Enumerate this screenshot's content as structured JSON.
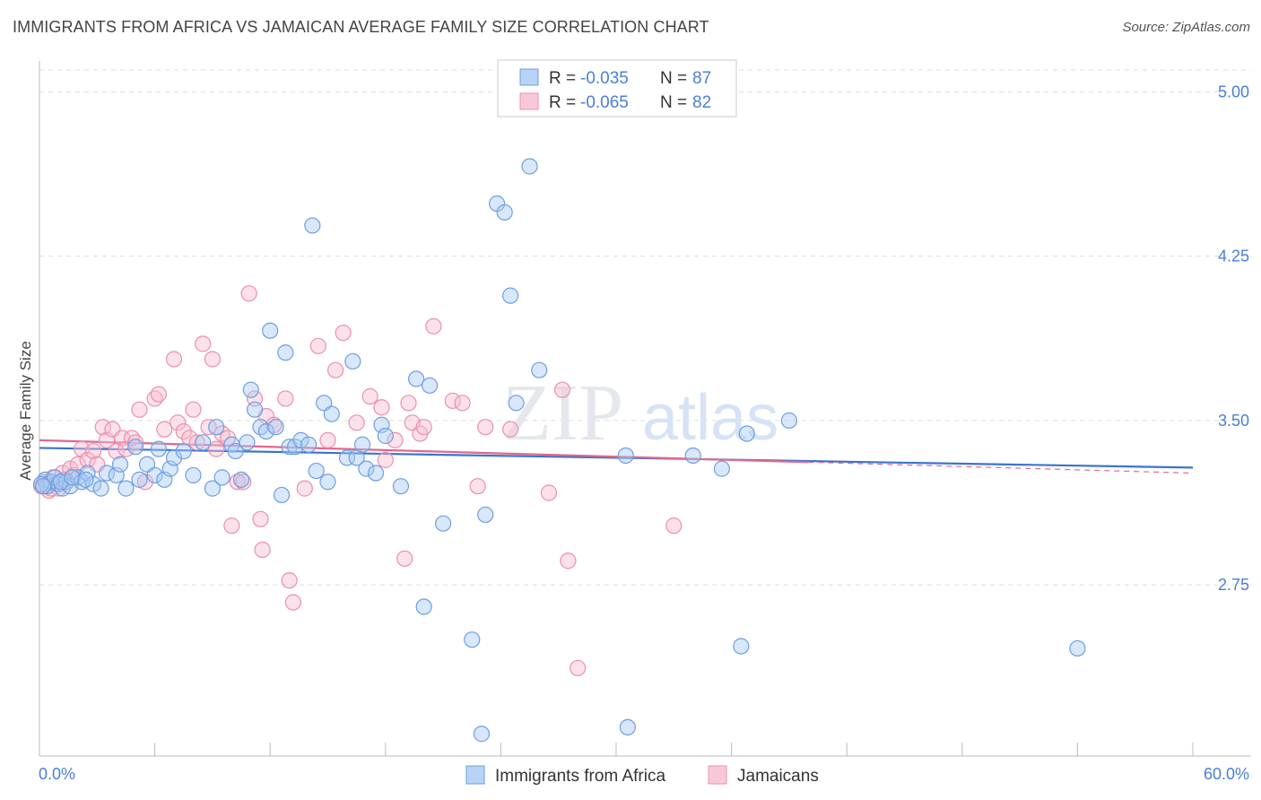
{
  "title": "IMMIGRANTS FROM AFRICA VS JAMAICAN AVERAGE FAMILY SIZE CORRELATION CHART",
  "source": "Source: ZipAtlas.com",
  "watermark": {
    "zip": "ZIP",
    "atlas": "atlas"
  },
  "colors": {
    "blue_fill": "#a9c9f3",
    "blue_stroke": "#6d9fdf",
    "blue_line": "#3a74d0",
    "pink_fill": "#f7bfd0",
    "pink_stroke": "#ec8fac",
    "pink_line": "#e0688f",
    "axis_text": "#4a7fd4",
    "grid": "#dddddd"
  },
  "legend": {
    "rows": [
      {
        "r_label": "R =",
        "r_value": "-0.035",
        "n_label": "N =",
        "n_value": "87"
      },
      {
        "r_label": "R =",
        "r_value": "-0.065",
        "n_label": "N =",
        "n_value": "82"
      }
    ]
  },
  "chart_data": {
    "type": "scatter",
    "xlabel": "",
    "ylabel": "Average Family Size",
    "xlim": [
      0,
      60
    ],
    "ylim": [
      2.03,
      5.1
    ],
    "x_tick_labels": [
      "0.0%",
      "60.0%"
    ],
    "y_ticks": [
      2.75,
      3.5,
      4.25,
      5.0
    ],
    "y_tick_labels": [
      "2.75",
      "3.50",
      "4.25",
      "5.00"
    ],
    "series": [
      {
        "name": "Immigrants from Africa",
        "color": "blue",
        "trend": {
          "x": [
            0,
            60
          ],
          "y": [
            3.375,
            3.285
          ]
        },
        "points": [
          [
            0.3,
            3.23
          ],
          [
            0.4,
            3.2
          ],
          [
            0.6,
            3.22
          ],
          [
            0.8,
            3.24
          ],
          [
            1,
            3.21
          ],
          [
            1.2,
            3.19
          ],
          [
            1.4,
            3.22
          ],
          [
            1.6,
            3.2
          ],
          [
            2,
            3.24
          ],
          [
            2.2,
            3.22
          ],
          [
            2.5,
            3.26
          ],
          [
            2.8,
            3.21
          ],
          [
            3.2,
            3.19
          ],
          [
            3.5,
            3.26
          ],
          [
            4,
            3.25
          ],
          [
            4.2,
            3.3
          ],
          [
            4.5,
            3.19
          ],
          [
            5,
            3.38
          ],
          [
            5.2,
            3.23
          ],
          [
            5.6,
            3.3
          ],
          [
            6,
            3.25
          ],
          [
            6.2,
            3.37
          ],
          [
            6.5,
            3.23
          ],
          [
            6.8,
            3.28
          ],
          [
            7,
            3.33
          ],
          [
            7.5,
            3.36
          ],
          [
            8,
            3.25
          ],
          [
            8.5,
            3.4
          ],
          [
            9,
            3.19
          ],
          [
            9.2,
            3.47
          ],
          [
            9.5,
            3.24
          ],
          [
            10,
            3.39
          ],
          [
            10.2,
            3.36
          ],
          [
            10.5,
            3.23
          ],
          [
            10.8,
            3.4
          ],
          [
            11,
            3.64
          ],
          [
            11.2,
            3.55
          ],
          [
            11.5,
            3.47
          ],
          [
            11.8,
            3.45
          ],
          [
            12,
            3.91
          ],
          [
            12.3,
            3.47
          ],
          [
            12.6,
            3.16
          ],
          [
            12.8,
            3.81
          ],
          [
            13,
            3.38
          ],
          [
            13.3,
            3.38
          ],
          [
            13.6,
            3.41
          ],
          [
            14,
            3.39
          ],
          [
            14.2,
            4.39
          ],
          [
            14.4,
            3.27
          ],
          [
            14.8,
            3.58
          ],
          [
            15,
            3.22
          ],
          [
            15.2,
            3.53
          ],
          [
            16,
            3.33
          ],
          [
            16.3,
            3.77
          ],
          [
            16.5,
            3.33
          ],
          [
            16.8,
            3.39
          ],
          [
            17,
            3.28
          ],
          [
            17.5,
            3.26
          ],
          [
            17.8,
            3.48
          ],
          [
            18,
            3.43
          ],
          [
            18.8,
            3.2
          ],
          [
            19.6,
            3.69
          ],
          [
            20,
            2.65
          ],
          [
            20.3,
            3.66
          ],
          [
            21,
            3.03
          ],
          [
            22.5,
            2.5
          ],
          [
            23,
            2.07
          ],
          [
            23.2,
            3.07
          ],
          [
            23.8,
            4.49
          ],
          [
            24.2,
            4.45
          ],
          [
            24.5,
            4.07
          ],
          [
            24.8,
            3.58
          ],
          [
            25.5,
            4.66
          ],
          [
            26,
            3.73
          ],
          [
            30.5,
            3.34
          ],
          [
            30.6,
            2.1
          ],
          [
            34,
            3.34
          ],
          [
            35.5,
            3.28
          ],
          [
            36.5,
            2.47
          ],
          [
            36.8,
            3.44
          ],
          [
            39,
            3.5
          ],
          [
            54,
            2.46
          ],
          [
            0.1,
            3.21
          ],
          [
            0.2,
            3.2
          ],
          [
            1.1,
            3.22
          ],
          [
            1.7,
            3.24
          ],
          [
            2.4,
            3.23
          ]
        ]
      },
      {
        "name": "Jamaicans",
        "color": "pink",
        "trend": {
          "x": [
            0,
            40
          ],
          "y": [
            3.41,
            3.31
          ]
        },
        "points": [
          [
            0.2,
            3.2
          ],
          [
            0.3,
            3.22
          ],
          [
            0.5,
            3.18
          ],
          [
            0.7,
            3.24
          ],
          [
            0.9,
            3.21
          ],
          [
            1,
            3.19
          ],
          [
            1.2,
            3.26
          ],
          [
            1.4,
            3.22
          ],
          [
            1.6,
            3.28
          ],
          [
            1.8,
            3.25
          ],
          [
            2,
            3.3
          ],
          [
            2.2,
            3.37
          ],
          [
            2.5,
            3.32
          ],
          [
            2.8,
            3.36
          ],
          [
            3,
            3.3
          ],
          [
            3.3,
            3.47
          ],
          [
            3.5,
            3.41
          ],
          [
            3.8,
            3.46
          ],
          [
            4,
            3.36
          ],
          [
            4.3,
            3.42
          ],
          [
            4.5,
            3.37
          ],
          [
            4.8,
            3.42
          ],
          [
            5,
            3.4
          ],
          [
            5.2,
            3.55
          ],
          [
            5.5,
            3.22
          ],
          [
            6,
            3.6
          ],
          [
            6.2,
            3.62
          ],
          [
            6.5,
            3.46
          ],
          [
            7,
            3.78
          ],
          [
            7.2,
            3.49
          ],
          [
            7.5,
            3.45
          ],
          [
            7.8,
            3.42
          ],
          [
            8,
            3.55
          ],
          [
            8.2,
            3.4
          ],
          [
            8.5,
            3.85
          ],
          [
            8.8,
            3.47
          ],
          [
            9,
            3.78
          ],
          [
            9.2,
            3.37
          ],
          [
            9.5,
            3.44
          ],
          [
            9.8,
            3.42
          ],
          [
            10,
            3.02
          ],
          [
            10.3,
            3.22
          ],
          [
            10.6,
            3.22
          ],
          [
            10.9,
            4.08
          ],
          [
            11.2,
            3.6
          ],
          [
            11.5,
            3.05
          ],
          [
            11.6,
            2.91
          ],
          [
            11.8,
            3.52
          ],
          [
            12.2,
            3.48
          ],
          [
            12.8,
            3.6
          ],
          [
            13,
            2.77
          ],
          [
            13.2,
            2.67
          ],
          [
            13.8,
            3.19
          ],
          [
            14.5,
            3.84
          ],
          [
            15,
            3.41
          ],
          [
            15.4,
            3.73
          ],
          [
            15.8,
            3.9
          ],
          [
            16.5,
            3.49
          ],
          [
            17.2,
            3.61
          ],
          [
            17.8,
            3.56
          ],
          [
            18,
            3.32
          ],
          [
            18.5,
            3.41
          ],
          [
            19,
            2.87
          ],
          [
            19.2,
            3.58
          ],
          [
            19.4,
            3.49
          ],
          [
            19.8,
            3.44
          ],
          [
            20,
            3.47
          ],
          [
            20.5,
            3.93
          ],
          [
            21.5,
            3.59
          ],
          [
            22,
            3.58
          ],
          [
            22.8,
            3.2
          ],
          [
            23.2,
            3.47
          ],
          [
            24.5,
            3.46
          ],
          [
            26.5,
            3.17
          ],
          [
            27.2,
            3.64
          ],
          [
            27.5,
            2.86
          ],
          [
            28,
            2.37
          ],
          [
            33,
            3.02
          ],
          [
            0.4,
            3.21
          ],
          [
            0.6,
            3.19
          ],
          [
            1.3,
            3.23
          ],
          [
            0.1,
            3.2
          ]
        ]
      }
    ]
  },
  "bottom_legend": [
    {
      "label": "Immigrants from Africa",
      "color": "blue"
    },
    {
      "label": "Jamaicans",
      "color": "pink"
    }
  ]
}
